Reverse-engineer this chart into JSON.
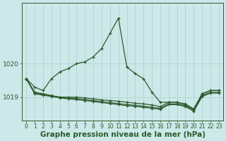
{
  "hours": [
    0,
    1,
    2,
    3,
    4,
    5,
    6,
    7,
    8,
    9,
    10,
    11,
    12,
    13,
    14,
    15,
    16,
    17,
    18,
    19,
    20,
    21,
    22,
    23
  ],
  "line_peak": [
    1019.55,
    1019.3,
    1019.2,
    1019.55,
    1019.75,
    1019.85,
    1020.0,
    1020.05,
    1020.2,
    1020.45,
    1020.9,
    1021.35,
    1019.9,
    1019.7,
    1019.55,
    1019.15,
    1018.85,
    1018.85,
    1018.85,
    1018.8,
    1018.65,
    1019.1,
    1019.2,
    1019.2
  ],
  "line_flat1": [
    1019.55,
    1019.15,
    1019.1,
    1019.05,
    1019.0,
    1019.0,
    1019.0,
    1018.98,
    1018.95,
    1018.92,
    1018.9,
    1018.88,
    1018.85,
    1018.82,
    1018.8,
    1018.77,
    1018.72,
    1018.85,
    1018.85,
    1018.78,
    1018.65,
    1019.1,
    1019.2,
    1019.2
  ],
  "line_flat2": [
    1019.55,
    1019.12,
    1019.08,
    1019.04,
    1019.0,
    1018.98,
    1018.96,
    1018.93,
    1018.9,
    1018.87,
    1018.84,
    1018.81,
    1018.78,
    1018.76,
    1018.73,
    1018.7,
    1018.67,
    1018.8,
    1018.8,
    1018.75,
    1018.62,
    1019.05,
    1019.15,
    1019.15
  ],
  "line_flat3": [
    1019.55,
    1019.1,
    1019.06,
    1019.02,
    1018.98,
    1018.95,
    1018.93,
    1018.9,
    1018.87,
    1018.84,
    1018.81,
    1018.78,
    1018.75,
    1018.73,
    1018.7,
    1018.67,
    1018.64,
    1018.78,
    1018.78,
    1018.72,
    1018.58,
    1019.02,
    1019.12,
    1019.12
  ],
  "line_color": "#2d5a2d",
  "bg_color": "#cce8e8",
  "grid_color": "#aacfcf",
  "ytick_labels": [
    "1019",
    "1020"
  ],
  "ytick_vals": [
    1019.0,
    1020.0
  ],
  "ylim": [
    1018.3,
    1021.8
  ],
  "xlim": [
    -0.5,
    23.5
  ],
  "xlabel": "Graphe pression niveau de la mer (hPa)",
  "xlabel_fontsize": 7.5,
  "tick_fontsize": 5.5
}
